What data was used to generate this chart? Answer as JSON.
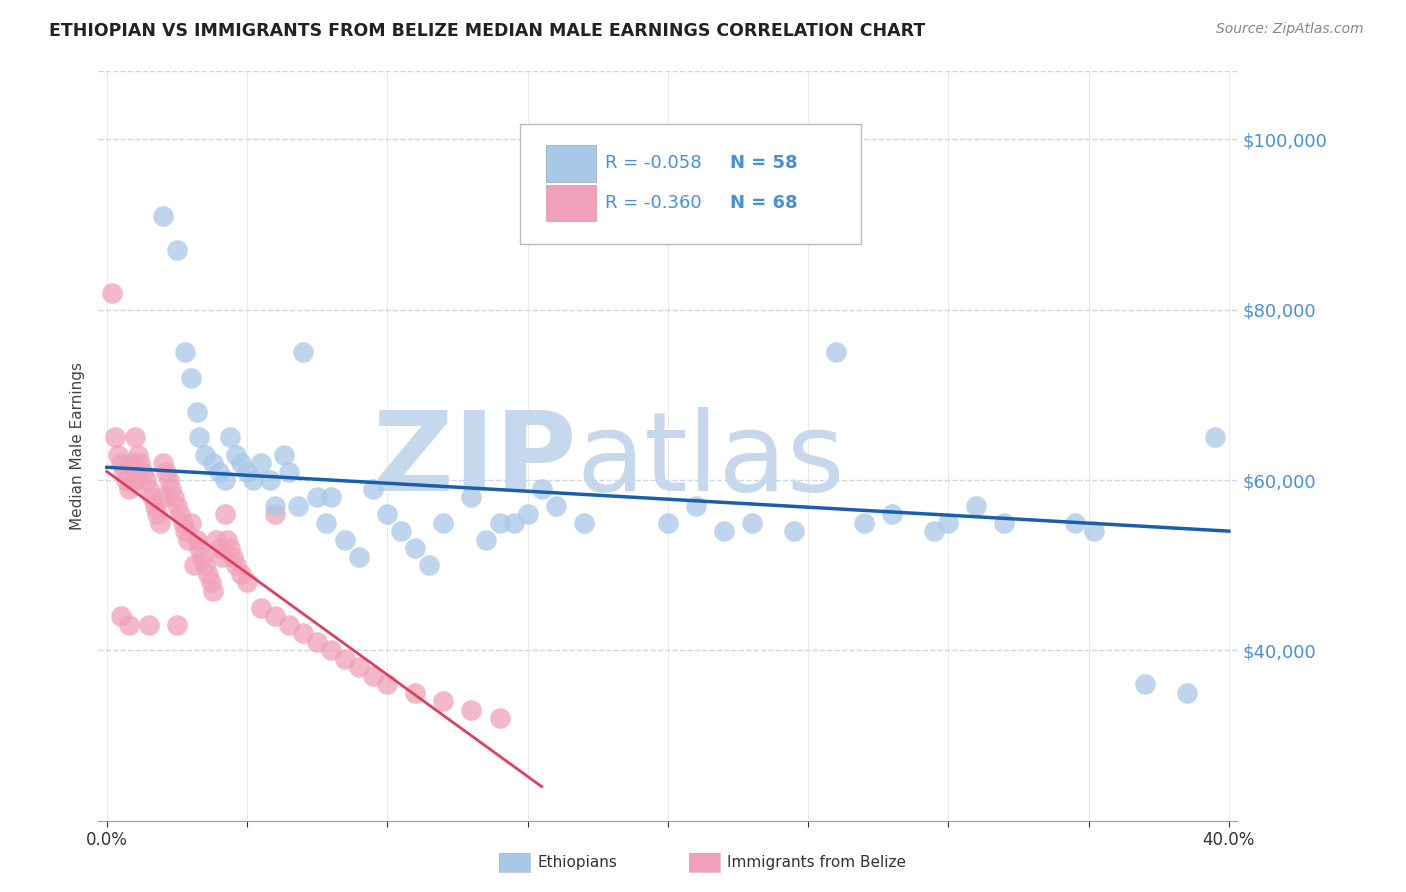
{
  "title": "ETHIOPIAN VS IMMIGRANTS FROM BELIZE MEDIAN MALE EARNINGS CORRELATION CHART",
  "source_text": "Source: ZipAtlas.com",
  "ylabel": "Median Male Earnings",
  "xlabel": "",
  "xlim": [
    -0.003,
    0.403
  ],
  "ylim": [
    20000,
    108000
  ],
  "yticks": [
    40000,
    60000,
    80000,
    100000
  ],
  "ytick_labels": [
    "$40,000",
    "$60,000",
    "$80,000",
    "$100,000"
  ],
  "xticks": [
    0.0,
    0.05,
    0.1,
    0.15,
    0.2,
    0.25,
    0.3,
    0.35,
    0.4
  ],
  "xtick_labels": [
    "0.0%",
    "",
    "",
    "",
    "",
    "",
    "",
    "",
    "40.0%"
  ],
  "blue_color": "#a8c8e8",
  "pink_color": "#f0a0b8",
  "blue_line_color": "#1a5fad",
  "pink_line_color": "#e04060",
  "legend_R_blue": "R = -0.058",
  "legend_N_blue": "N = 58",
  "legend_R_pink": "R = -0.360",
  "legend_N_pink": "N = 68",
  "legend_label_blue": "Ethiopians",
  "legend_label_pink": "Immigrants from Belize",
  "watermark_zip": "ZIP",
  "watermark_atlas": "atlas",
  "watermark_color": "#c5d8ec",
  "axis_color": "#4a90d9",
  "grid_color": "#c8d8e8",
  "title_color": "#222222",
  "blue_scatter_x": [
    0.02,
    0.025,
    0.028,
    0.03,
    0.032,
    0.033,
    0.035,
    0.038,
    0.04,
    0.042,
    0.044,
    0.046,
    0.048,
    0.05,
    0.052,
    0.055,
    0.058,
    0.06,
    0.063,
    0.065,
    0.068,
    0.07,
    0.075,
    0.078,
    0.08,
    0.085,
    0.09,
    0.095,
    0.1,
    0.105,
    0.11,
    0.115,
    0.12,
    0.13,
    0.135,
    0.14,
    0.145,
    0.15,
    0.155,
    0.16,
    0.17,
    0.2,
    0.21,
    0.22,
    0.23,
    0.26,
    0.27,
    0.28,
    0.295,
    0.3,
    0.31,
    0.32,
    0.345,
    0.352,
    0.37,
    0.385,
    0.395,
    0.245
  ],
  "blue_scatter_y": [
    91000,
    87000,
    75000,
    72000,
    68000,
    65000,
    63000,
    62000,
    61000,
    60000,
    65000,
    63000,
    62000,
    61000,
    60000,
    62000,
    60000,
    57000,
    63000,
    61000,
    57000,
    75000,
    58000,
    55000,
    58000,
    53000,
    51000,
    59000,
    56000,
    54000,
    52000,
    50000,
    55000,
    58000,
    53000,
    55000,
    55000,
    56000,
    59000,
    57000,
    55000,
    55000,
    57000,
    54000,
    55000,
    75000,
    55000,
    56000,
    54000,
    55000,
    57000,
    55000,
    55000,
    54000,
    36000,
    35000,
    65000,
    54000
  ],
  "pink_scatter_x": [
    0.002,
    0.003,
    0.004,
    0.005,
    0.006,
    0.007,
    0.008,
    0.009,
    0.01,
    0.01,
    0.011,
    0.012,
    0.013,
    0.014,
    0.015,
    0.016,
    0.017,
    0.018,
    0.019,
    0.02,
    0.02,
    0.021,
    0.022,
    0.023,
    0.024,
    0.025,
    0.026,
    0.027,
    0.028,
    0.029,
    0.03,
    0.031,
    0.032,
    0.033,
    0.034,
    0.035,
    0.036,
    0.037,
    0.038,
    0.039,
    0.04,
    0.041,
    0.042,
    0.043,
    0.044,
    0.045,
    0.046,
    0.048,
    0.05,
    0.055,
    0.06,
    0.065,
    0.07,
    0.075,
    0.08,
    0.085,
    0.09,
    0.095,
    0.1,
    0.11,
    0.12,
    0.13,
    0.14,
    0.005,
    0.008,
    0.015,
    0.025,
    0.06
  ],
  "pink_scatter_y": [
    82000,
    65000,
    63000,
    62000,
    61000,
    60000,
    59000,
    62000,
    65000,
    60000,
    63000,
    62000,
    61000,
    60000,
    59000,
    58000,
    57000,
    56000,
    55000,
    62000,
    58000,
    61000,
    60000,
    59000,
    58000,
    57000,
    56000,
    55000,
    54000,
    53000,
    55000,
    50000,
    53000,
    52000,
    51000,
    50000,
    49000,
    48000,
    47000,
    53000,
    52000,
    51000,
    56000,
    53000,
    52000,
    51000,
    50000,
    49000,
    48000,
    45000,
    44000,
    43000,
    42000,
    41000,
    40000,
    39000,
    38000,
    37000,
    36000,
    35000,
    34000,
    33000,
    32000,
    44000,
    43000,
    43000,
    43000,
    56000
  ],
  "blue_line_x": [
    0.0,
    0.4
  ],
  "blue_line_y": [
    61500,
    54000
  ],
  "pink_line_x": [
    0.0,
    0.155
  ],
  "pink_line_y": [
    61000,
    24000
  ]
}
